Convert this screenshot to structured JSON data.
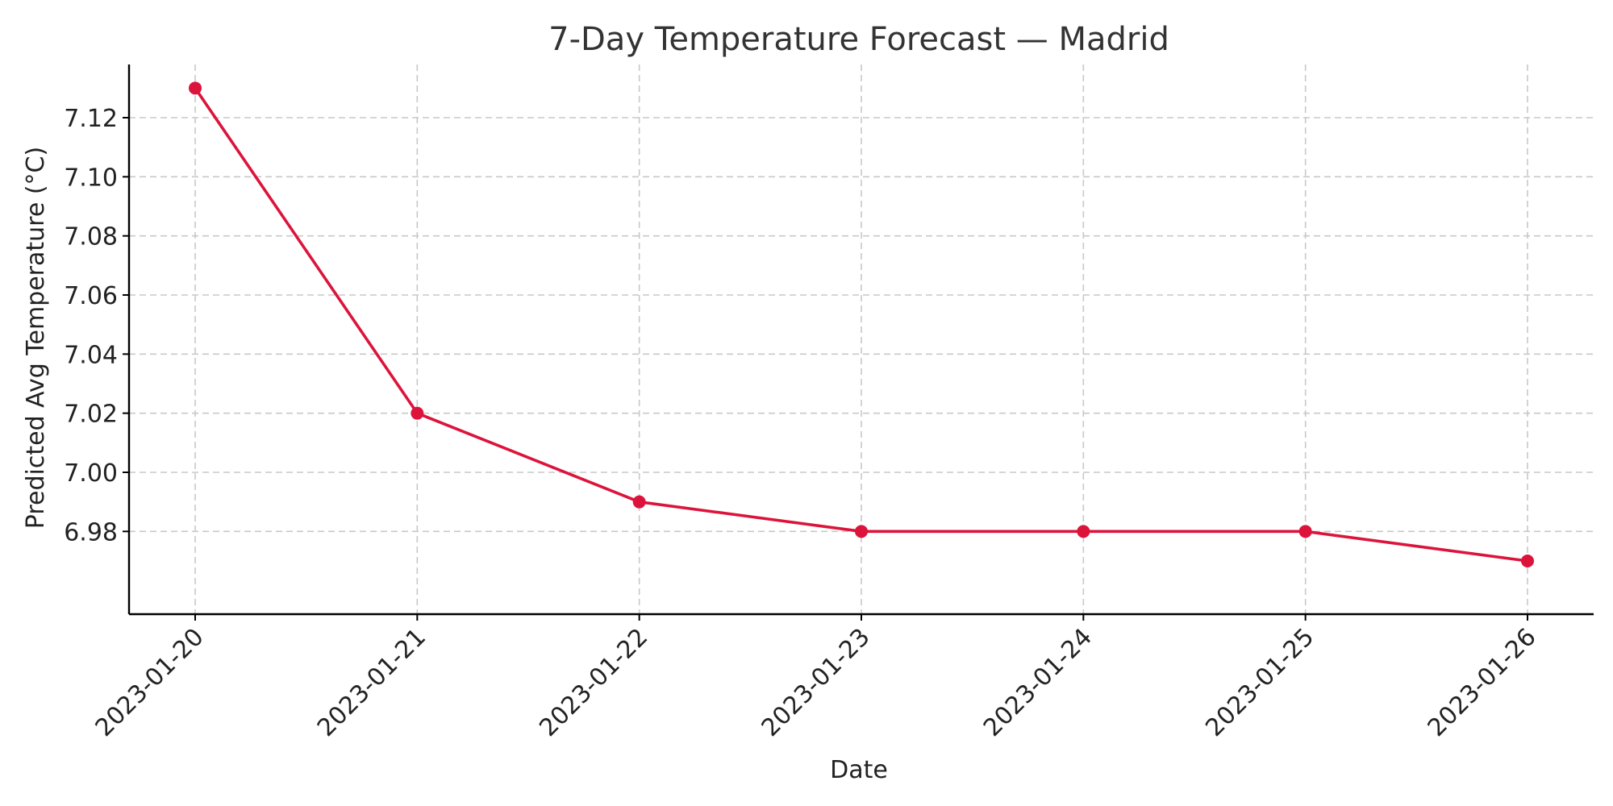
{
  "chart_data": {
    "type": "line",
    "title": "7-Day Temperature Forecast — Madrid",
    "xlabel": "Date",
    "ylabel": "Predicted Avg Temperature (°C)",
    "categories": [
      "2023-01-20",
      "2023-01-21",
      "2023-01-22",
      "2023-01-23",
      "2023-01-24",
      "2023-01-25",
      "2023-01-26"
    ],
    "series": [
      {
        "values": [
          7.13,
          7.02,
          6.99,
          6.98,
          6.98,
          6.98,
          6.97
        ],
        "color": "#dc143c",
        "marker": "circle"
      }
    ],
    "ylim": [
      6.952,
      7.138
    ],
    "yticks": [
      6.98,
      7.0,
      7.02,
      7.04,
      7.06,
      7.08,
      7.1,
      7.12
    ],
    "ytick_labels": [
      "6.98",
      "7.00",
      "7.02",
      "7.04",
      "7.06",
      "7.08",
      "7.10",
      "7.12"
    ],
    "grid": true,
    "x_tick_rotation_deg": 45
  }
}
